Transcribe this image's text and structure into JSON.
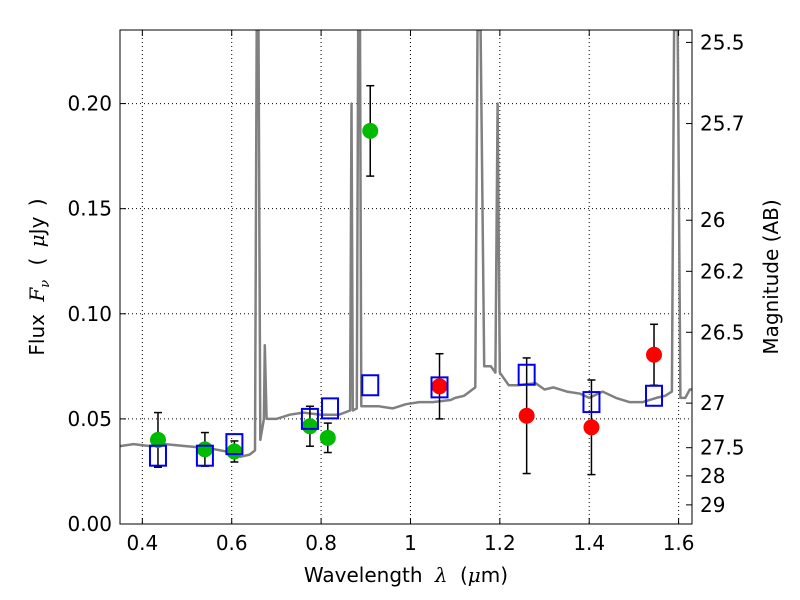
{
  "chart_data": {
    "type": "scatter",
    "xlabel_parts": [
      "Wavelength",
      "λ",
      "(",
      "μ",
      "m)"
    ],
    "ylabel_parts": [
      "Flux",
      "F",
      "ν",
      "(",
      "μ",
      "Jy",
      ")"
    ],
    "y2label": "Magnitude (AB)",
    "xlim": [
      0.35,
      1.63
    ],
    "ylim": [
      0.0,
      0.235
    ],
    "xticks": [
      0.4,
      0.6,
      0.8,
      1.0,
      1.2,
      1.4,
      1.6
    ],
    "xtick_labels": [
      "0.4",
      "0.6",
      "0.8",
      "1",
      "1.2",
      "1.4",
      "1.6"
    ],
    "yticks": [
      0.0,
      0.05,
      0.1,
      0.15,
      0.2
    ],
    "ytick_labels": [
      "0.00",
      "0.05",
      "0.10",
      "0.15",
      "0.20"
    ],
    "mag_ticks": [
      {
        "label": "25.5",
        "flux": 0.2291
      },
      {
        "label": "25.7",
        "flux": 0.1905
      },
      {
        "label": "26",
        "flux": 0.1445
      },
      {
        "label": "26.2",
        "flux": 0.1202
      },
      {
        "label": "26.5",
        "flux": 0.0912
      },
      {
        "label": "27",
        "flux": 0.0575
      },
      {
        "label": "27.5",
        "flux": 0.0363
      },
      {
        "label": "28",
        "flux": 0.0229
      },
      {
        "label": "29",
        "flux": 0.0091
      }
    ],
    "grid": true,
    "series": [
      {
        "name": "green-points",
        "color": "#00bb00",
        "marker": "circle",
        "points": [
          {
            "x": 0.435,
            "y": 0.04,
            "err": 0.013
          },
          {
            "x": 0.54,
            "y": 0.0355,
            "err": 0.008
          },
          {
            "x": 0.606,
            "y": 0.0345,
            "err": 0.005
          },
          {
            "x": 0.775,
            "y": 0.0465,
            "err": 0.0095
          },
          {
            "x": 0.815,
            "y": 0.041,
            "err": 0.007
          },
          {
            "x": 0.91,
            "y": 0.187,
            "err": 0.0215
          }
        ]
      },
      {
        "name": "red-points",
        "color": "#ff0000",
        "marker": "circle",
        "points": [
          {
            "x": 1.065,
            "y": 0.0655,
            "err": 0.0155
          },
          {
            "x": 1.26,
            "y": 0.0515,
            "err": 0.0275
          },
          {
            "x": 1.405,
            "y": 0.046,
            "err": 0.0225
          },
          {
            "x": 1.545,
            "y": 0.0805,
            "err": 0.0145
          }
        ]
      },
      {
        "name": "model-bands",
        "color": "#0000ee",
        "marker": "square-open",
        "points": [
          {
            "x": 0.435,
            "y": 0.0325
          },
          {
            "x": 0.54,
            "y": 0.0325
          },
          {
            "x": 0.606,
            "y": 0.038
          },
          {
            "x": 0.775,
            "y": 0.05
          },
          {
            "x": 0.82,
            "y": 0.055
          },
          {
            "x": 0.91,
            "y": 0.066
          },
          {
            "x": 1.065,
            "y": 0.065
          },
          {
            "x": 1.26,
            "y": 0.071
          },
          {
            "x": 1.405,
            "y": 0.058
          },
          {
            "x": 1.545,
            "y": 0.061
          }
        ]
      }
    ],
    "model_spectrum": {
      "name": "template-spectrum",
      "color": "#808080",
      "points": [
        [
          0.35,
          0.037
        ],
        [
          0.38,
          0.038
        ],
        [
          0.42,
          0.037
        ],
        [
          0.45,
          0.038
        ],
        [
          0.5,
          0.037
        ],
        [
          0.55,
          0.036
        ],
        [
          0.6,
          0.034
        ],
        [
          0.62,
          0.032
        ],
        [
          0.64,
          0.033
        ],
        [
          0.652,
          0.035
        ],
        [
          0.656,
          0.235
        ],
        [
          0.66,
          0.235
        ],
        [
          0.664,
          0.04
        ],
        [
          0.672,
          0.05
        ],
        [
          0.674,
          0.085
        ],
        [
          0.678,
          0.05
        ],
        [
          0.7,
          0.05
        ],
        [
          0.73,
          0.052
        ],
        [
          0.76,
          0.053
        ],
        [
          0.8,
          0.052
        ],
        [
          0.84,
          0.052
        ],
        [
          0.865,
          0.054
        ],
        [
          0.868,
          0.2
        ],
        [
          0.871,
          0.054
        ],
        [
          0.88,
          0.055
        ],
        [
          0.883,
          0.235
        ],
        [
          0.887,
          0.235
        ],
        [
          0.89,
          0.056
        ],
        [
          0.93,
          0.056
        ],
        [
          0.96,
          0.055
        ],
        [
          0.99,
          0.057
        ],
        [
          1.02,
          0.058
        ],
        [
          1.05,
          0.058
        ],
        [
          1.09,
          0.059
        ],
        [
          1.1,
          0.06
        ],
        [
          1.12,
          0.061
        ],
        [
          1.145,
          0.065
        ],
        [
          1.15,
          0.235
        ],
        [
          1.157,
          0.235
        ],
        [
          1.165,
          0.075
        ],
        [
          1.18,
          0.075
        ],
        [
          1.19,
          0.072
        ],
        [
          1.195,
          0.2
        ],
        [
          1.2,
          0.072
        ],
        [
          1.22,
          0.066
        ],
        [
          1.24,
          0.066
        ],
        [
          1.28,
          0.067
        ],
        [
          1.3,
          0.064
        ],
        [
          1.32,
          0.065
        ],
        [
          1.35,
          0.063
        ],
        [
          1.38,
          0.062
        ],
        [
          1.4,
          0.06
        ],
        [
          1.43,
          0.063
        ],
        [
          1.46,
          0.06
        ],
        [
          1.49,
          0.058
        ],
        [
          1.52,
          0.058
        ],
        [
          1.55,
          0.06
        ],
        [
          1.57,
          0.061
        ],
        [
          1.585,
          0.063
        ],
        [
          1.59,
          0.235
        ],
        [
          1.598,
          0.235
        ],
        [
          1.604,
          0.06
        ],
        [
          1.615,
          0.06
        ],
        [
          1.625,
          0.064
        ],
        [
          1.63,
          0.064
        ]
      ]
    }
  }
}
